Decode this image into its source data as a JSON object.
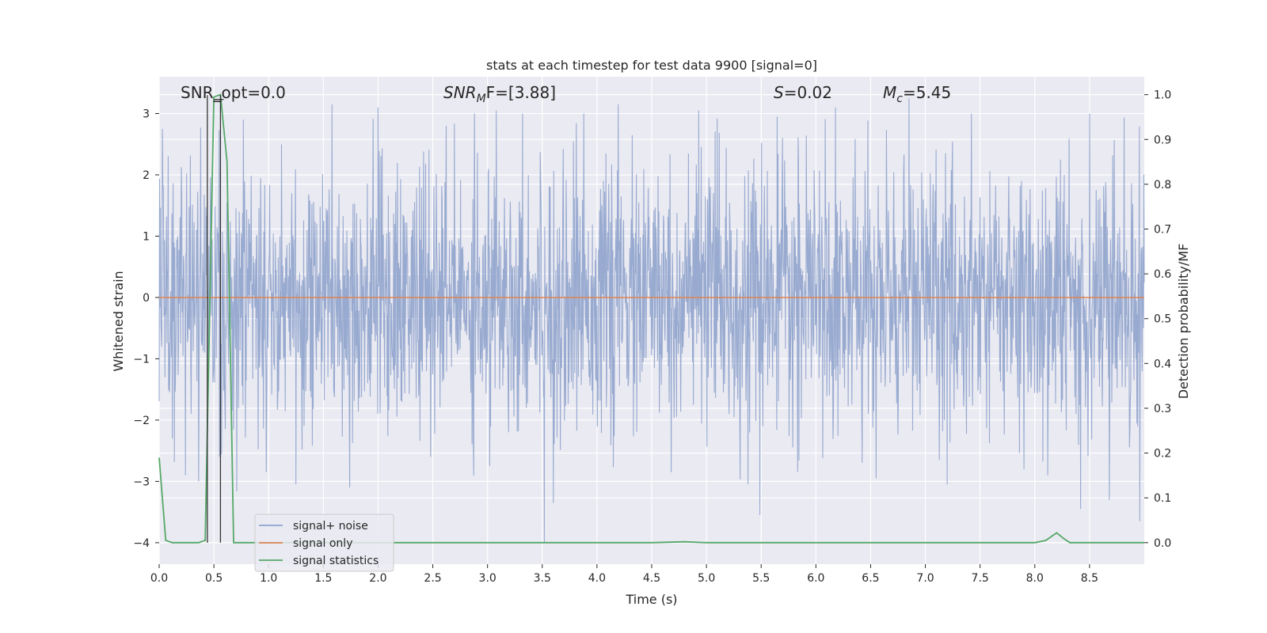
{
  "chart_data": {
    "type": "line",
    "title": "stats at each timestep for test data 9900 [signal=0]",
    "xlabel": "Time (s)",
    "ylabel": "Whitened strain",
    "ylabel_right": "Detection probability/MF",
    "xlim": [
      0,
      9.0
    ],
    "ylim": [
      -4.35,
      3.6
    ],
    "ylim_right": [
      -0.048,
      1.04
    ],
    "x_ticks": [
      0.0,
      0.5,
      1.0,
      1.5,
      2.0,
      2.5,
      3.0,
      3.5,
      4.0,
      4.5,
      5.0,
      5.5,
      6.0,
      6.5,
      7.0,
      7.5,
      8.0,
      8.5
    ],
    "x_tick_labels": [
      "0.0",
      "0.5",
      "1.0",
      "1.5",
      "2.0",
      "2.5",
      "3.0",
      "3.5",
      "4.0",
      "4.5",
      "5.0",
      "5.5",
      "6.0",
      "6.5",
      "7.0",
      "7.5",
      "8.0",
      "8.5"
    ],
    "y_ticks": [
      3,
      2,
      1,
      0,
      -1,
      -2,
      -3,
      -4
    ],
    "y_tick_labels": [
      "3",
      "2",
      "1",
      "0",
      "−1",
      "−2",
      "−3",
      "−4"
    ],
    "y_right_ticks": [
      1.0,
      0.9,
      0.8,
      0.7,
      0.6,
      0.5,
      0.4,
      0.3,
      0.2,
      0.1,
      0.0
    ],
    "y_right_tick_labels": [
      "1.0",
      "0.9",
      "0.8",
      "0.7",
      "0.6",
      "0.5",
      "0.4",
      "0.3",
      "0.2",
      "0.1",
      "0.0"
    ],
    "grid": true,
    "legend_position": "bottom-left",
    "colors": {
      "background": "#eaeaf2",
      "grid": "#ffffff",
      "noise": "#8fa3cc",
      "signal_only": "#dd8452",
      "statistics": "#55a868",
      "vline": "#333333"
    },
    "annotations": {
      "snr_opt": "SNR_opt=0.0",
      "snr_mf_prefix": "SNR",
      "snr_mf_sub": "M",
      "snr_mf_suffix": "F=[3.88]",
      "s_prefix": "S",
      "s_suffix": "=0.02",
      "mc_prefix": "M",
      "mc_sub": "c",
      "mc_suffix": "=5.45"
    },
    "vlines_x": [
      0.44,
      0.56
    ],
    "series": [
      {
        "name": "signal+ noise",
        "description_of_values": "whitened strain noise, amplitude ~ +/-2.2 typical, peaks to ~3.2 and ~-4.0",
        "noise_envelope": {
          "typical_abs": 1.9,
          "max": 3.2,
          "min": -4.0
        },
        "noise_spikes": [
          {
            "x": 0.03,
            "y": 2.75
          },
          {
            "x": 0.24,
            "y": -2.9
          },
          {
            "x": 0.36,
            "y": -3.0
          },
          {
            "x": 0.55,
            "y": -2.6
          },
          {
            "x": 0.77,
            "y": 2.9
          },
          {
            "x": 0.98,
            "y": -2.85
          },
          {
            "x": 1.25,
            "y": -3.05
          },
          {
            "x": 1.58,
            "y": 3.15
          },
          {
            "x": 1.74,
            "y": -3.1
          },
          {
            "x": 2.0,
            "y": 3.1
          },
          {
            "x": 2.48,
            "y": -2.6
          },
          {
            "x": 2.88,
            "y": 3.0
          },
          {
            "x": 3.02,
            "y": -2.75
          },
          {
            "x": 3.08,
            "y": 3.05
          },
          {
            "x": 3.52,
            "y": -4.0
          },
          {
            "x": 3.6,
            "y": -3.35
          },
          {
            "x": 3.88,
            "y": 3.0
          },
          {
            "x": 4.68,
            "y": -2.85
          },
          {
            "x": 4.93,
            "y": 3.05
          },
          {
            "x": 5.49,
            "y": -3.55
          },
          {
            "x": 6.18,
            "y": 3.1
          },
          {
            "x": 6.55,
            "y": -2.95
          },
          {
            "x": 6.85,
            "y": 3.25
          },
          {
            "x": 7.2,
            "y": -3.05
          },
          {
            "x": 7.42,
            "y": 3.0
          },
          {
            "x": 7.9,
            "y": -2.8
          },
          {
            "x": 8.12,
            "y": -2.9
          },
          {
            "x": 8.42,
            "y": -3.45
          },
          {
            "x": 8.5,
            "y": 3.0
          },
          {
            "x": 8.68,
            "y": -3.3
          },
          {
            "x": 8.96,
            "y": -3.65
          }
        ]
      },
      {
        "name": "signal only",
        "x": [
          0.0,
          9.0
        ],
        "values": [
          0.0,
          0.0
        ]
      },
      {
        "name": "signal statistics",
        "axis": "right",
        "x": [
          0.0,
          0.06,
          0.12,
          0.18,
          0.24,
          0.3,
          0.36,
          0.42,
          0.5,
          0.56,
          0.62,
          0.68,
          0.74,
          0.8,
          0.86,
          0.92,
          1.0,
          2.0,
          3.0,
          4.0,
          4.5,
          4.8,
          5.0,
          6.0,
          7.0,
          7.8,
          8.0,
          8.1,
          8.2,
          8.26,
          8.32,
          8.5,
          9.0
        ],
        "values": [
          0.19,
          0.005,
          0.0,
          0.0,
          0.0,
          0.0,
          0.0,
          0.005,
          0.995,
          1.0,
          0.85,
          0.0,
          0.0,
          0.0,
          0.0,
          0.0,
          0.0,
          0.0,
          0.0,
          0.0,
          0.0,
          0.002,
          0.0,
          0.0,
          0.0,
          0.0,
          0.0,
          0.005,
          0.022,
          0.01,
          0.0,
          0.0,
          0.0
        ]
      }
    ]
  }
}
